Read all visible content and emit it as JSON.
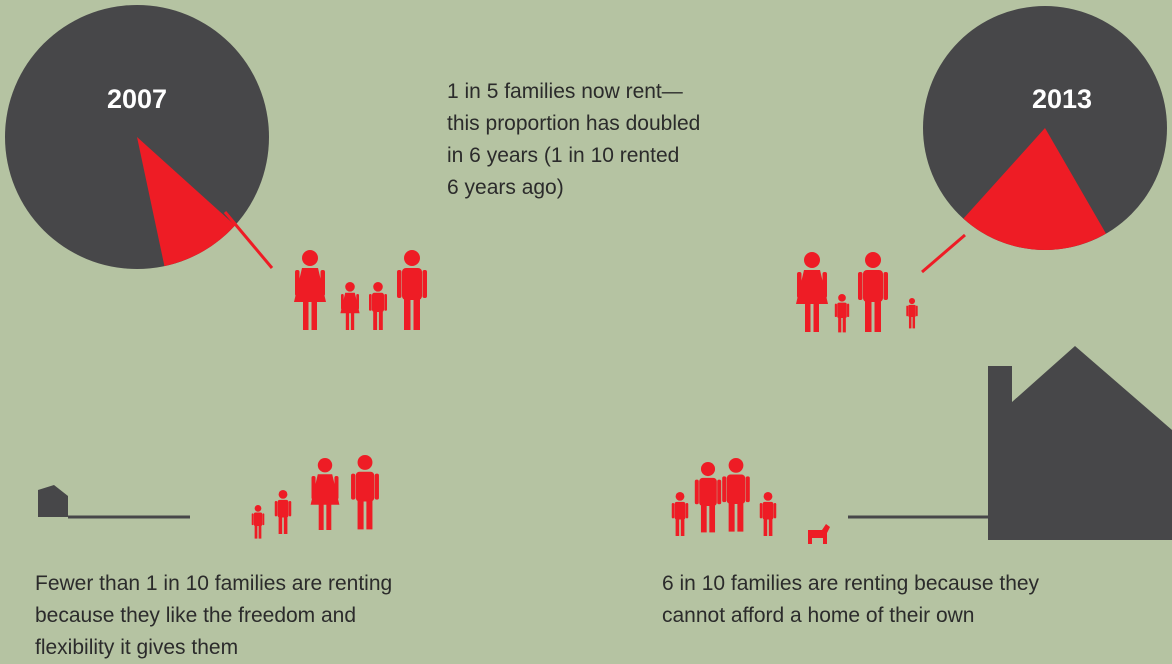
{
  "pies": [
    {
      "year": "2007",
      "share": 10
    },
    {
      "year": "2013",
      "share": 20
    }
  ],
  "headline": [
    "1 in 5 families now rent—",
    "this proportion has doubled",
    "in 6 years (1 in 10 rented",
    "6 years ago)"
  ],
  "freedom_note": [
    "Fewer than 1 in 10 families are renting",
    "because they like the freedom and",
    "flexibility it gives them"
  ],
  "afford_note": [
    "6 in 10 families are renting because they",
    "cannot afford a home of their own"
  ]
}
